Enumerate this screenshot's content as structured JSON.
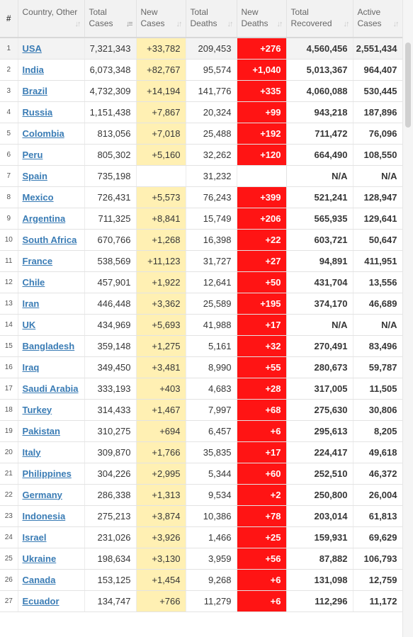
{
  "headers": {
    "num": "#",
    "country": "Country, Other",
    "total_cases": "Total Cases",
    "new_cases": "New Cases",
    "total_deaths": "Total Deaths",
    "new_deaths": "New Deaths",
    "total_recovered": "Total Recovered",
    "active_cases": "Active Cases"
  },
  "sort_icon": "sort-arrows-icon",
  "colors": {
    "new_cases_bg": "#fff0b3",
    "new_deaths_bg": "#ff1414",
    "link": "#3a7cb5"
  },
  "rows": [
    {
      "rank": "1",
      "country": "USA",
      "total_cases": "7,321,343",
      "new_cases": "+33,782",
      "total_deaths": "209,453",
      "new_deaths": "+276",
      "total_recovered": "4,560,456",
      "active_cases": "2,551,434"
    },
    {
      "rank": "2",
      "country": "India",
      "total_cases": "6,073,348",
      "new_cases": "+82,767",
      "total_deaths": "95,574",
      "new_deaths": "+1,040",
      "total_recovered": "5,013,367",
      "active_cases": "964,407"
    },
    {
      "rank": "3",
      "country": "Brazil",
      "total_cases": "4,732,309",
      "new_cases": "+14,194",
      "total_deaths": "141,776",
      "new_deaths": "+335",
      "total_recovered": "4,060,088",
      "active_cases": "530,445"
    },
    {
      "rank": "4",
      "country": "Russia",
      "total_cases": "1,151,438",
      "new_cases": "+7,867",
      "total_deaths": "20,324",
      "new_deaths": "+99",
      "total_recovered": "943,218",
      "active_cases": "187,896"
    },
    {
      "rank": "5",
      "country": "Colombia",
      "total_cases": "813,056",
      "new_cases": "+7,018",
      "total_deaths": "25,488",
      "new_deaths": "+192",
      "total_recovered": "711,472",
      "active_cases": "76,096"
    },
    {
      "rank": "6",
      "country": "Peru",
      "total_cases": "805,302",
      "new_cases": "+5,160",
      "total_deaths": "32,262",
      "new_deaths": "+120",
      "total_recovered": "664,490",
      "active_cases": "108,550"
    },
    {
      "rank": "7",
      "country": "Spain",
      "total_cases": "735,198",
      "new_cases": "",
      "total_deaths": "31,232",
      "new_deaths": "",
      "total_recovered": "N/A",
      "active_cases": "N/A"
    },
    {
      "rank": "8",
      "country": "Mexico",
      "total_cases": "726,431",
      "new_cases": "+5,573",
      "total_deaths": "76,243",
      "new_deaths": "+399",
      "total_recovered": "521,241",
      "active_cases": "128,947"
    },
    {
      "rank": "9",
      "country": "Argentina",
      "total_cases": "711,325",
      "new_cases": "+8,841",
      "total_deaths": "15,749",
      "new_deaths": "+206",
      "total_recovered": "565,935",
      "active_cases": "129,641"
    },
    {
      "rank": "10",
      "country": "South Africa",
      "total_cases": "670,766",
      "new_cases": "+1,268",
      "total_deaths": "16,398",
      "new_deaths": "+22",
      "total_recovered": "603,721",
      "active_cases": "50,647"
    },
    {
      "rank": "11",
      "country": "France",
      "total_cases": "538,569",
      "new_cases": "+11,123",
      "total_deaths": "31,727",
      "new_deaths": "+27",
      "total_recovered": "94,891",
      "active_cases": "411,951"
    },
    {
      "rank": "12",
      "country": "Chile",
      "total_cases": "457,901",
      "new_cases": "+1,922",
      "total_deaths": "12,641",
      "new_deaths": "+50",
      "total_recovered": "431,704",
      "active_cases": "13,556"
    },
    {
      "rank": "13",
      "country": "Iran",
      "total_cases": "446,448",
      "new_cases": "+3,362",
      "total_deaths": "25,589",
      "new_deaths": "+195",
      "total_recovered": "374,170",
      "active_cases": "46,689"
    },
    {
      "rank": "14",
      "country": "UK",
      "total_cases": "434,969",
      "new_cases": "+5,693",
      "total_deaths": "41,988",
      "new_deaths": "+17",
      "total_recovered": "N/A",
      "active_cases": "N/A"
    },
    {
      "rank": "15",
      "country": "Bangladesh",
      "total_cases": "359,148",
      "new_cases": "+1,275",
      "total_deaths": "5,161",
      "new_deaths": "+32",
      "total_recovered": "270,491",
      "active_cases": "83,496"
    },
    {
      "rank": "16",
      "country": "Iraq",
      "total_cases": "349,450",
      "new_cases": "+3,481",
      "total_deaths": "8,990",
      "new_deaths": "+55",
      "total_recovered": "280,673",
      "active_cases": "59,787"
    },
    {
      "rank": "17",
      "country": "Saudi Arabia",
      "total_cases": "333,193",
      "new_cases": "+403",
      "total_deaths": "4,683",
      "new_deaths": "+28",
      "total_recovered": "317,005",
      "active_cases": "11,505"
    },
    {
      "rank": "18",
      "country": "Turkey",
      "total_cases": "314,433",
      "new_cases": "+1,467",
      "total_deaths": "7,997",
      "new_deaths": "+68",
      "total_recovered": "275,630",
      "active_cases": "30,806"
    },
    {
      "rank": "19",
      "country": "Pakistan",
      "total_cases": "310,275",
      "new_cases": "+694",
      "total_deaths": "6,457",
      "new_deaths": "+6",
      "total_recovered": "295,613",
      "active_cases": "8,205"
    },
    {
      "rank": "20",
      "country": "Italy",
      "total_cases": "309,870",
      "new_cases": "+1,766",
      "total_deaths": "35,835",
      "new_deaths": "+17",
      "total_recovered": "224,417",
      "active_cases": "49,618"
    },
    {
      "rank": "21",
      "country": "Philippines",
      "total_cases": "304,226",
      "new_cases": "+2,995",
      "total_deaths": "5,344",
      "new_deaths": "+60",
      "total_recovered": "252,510",
      "active_cases": "46,372"
    },
    {
      "rank": "22",
      "country": "Germany",
      "total_cases": "286,338",
      "new_cases": "+1,313",
      "total_deaths": "9,534",
      "new_deaths": "+2",
      "total_recovered": "250,800",
      "active_cases": "26,004"
    },
    {
      "rank": "23",
      "country": "Indonesia",
      "total_cases": "275,213",
      "new_cases": "+3,874",
      "total_deaths": "10,386",
      "new_deaths": "+78",
      "total_recovered": "203,014",
      "active_cases": "61,813"
    },
    {
      "rank": "24",
      "country": "Israel",
      "total_cases": "231,026",
      "new_cases": "+3,926",
      "total_deaths": "1,466",
      "new_deaths": "+25",
      "total_recovered": "159,931",
      "active_cases": "69,629"
    },
    {
      "rank": "25",
      "country": "Ukraine",
      "total_cases": "198,634",
      "new_cases": "+3,130",
      "total_deaths": "3,959",
      "new_deaths": "+56",
      "total_recovered": "87,882",
      "active_cases": "106,793"
    },
    {
      "rank": "26",
      "country": "Canada",
      "total_cases": "153,125",
      "new_cases": "+1,454",
      "total_deaths": "9,268",
      "new_deaths": "+6",
      "total_recovered": "131,098",
      "active_cases": "12,759"
    },
    {
      "rank": "27",
      "country": "Ecuador",
      "total_cases": "134,747",
      "new_cases": "+766",
      "total_deaths": "11,279",
      "new_deaths": "+6",
      "total_recovered": "112,296",
      "active_cases": "11,172"
    }
  ]
}
